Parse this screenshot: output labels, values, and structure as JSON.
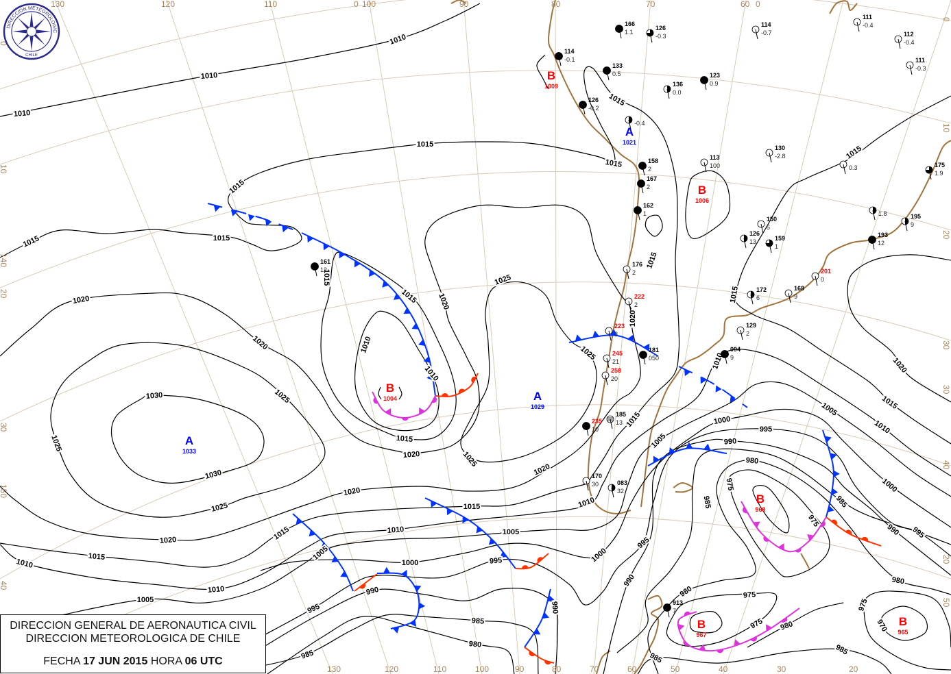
{
  "header": {
    "line1": "DIRECCION GENERAL DE AERONAUTICA CIVIL",
    "line2": "DIRECCION METEOROLOGICA DE CHILE",
    "date_label": "FECHA",
    "date": "17 JUN 2015",
    "hour_label": "HORA",
    "hour": "06 UTC"
  },
  "logo": {
    "text_top": "DIRECCION METEOROLOGICA",
    "text_bottom": "CHILE",
    "icon": "compass-rose-icon"
  },
  "colors": {
    "high": "#0000ff",
    "low": "#ff0000",
    "cold_front": "#0033ff",
    "warm_front": "#ff3300",
    "occluded_front": "#dd33dd",
    "isobar": "#000000",
    "coast": "#a0743c",
    "graticule": "#d8cbb8"
  },
  "pressure_centers": [
    {
      "type": "B",
      "value": "1009"
    },
    {
      "type": "A",
      "value": "1021"
    },
    {
      "type": "B",
      "value": "1006"
    },
    {
      "type": "B",
      "value": "1004"
    },
    {
      "type": "A",
      "value": "1029"
    },
    {
      "type": "A",
      "value": "1033"
    },
    {
      "type": "B",
      "value": "968"
    },
    {
      "type": "B",
      "value": "967"
    },
    {
      "type": "B",
      "value": "965"
    }
  ],
  "isobar_labels": [
    "1010",
    "1010",
    "1010",
    "1015",
    "1015",
    "1015",
    "1015",
    "1015",
    "1015",
    "1015",
    "1015",
    "1020",
    "1025",
    "1015",
    "1020",
    "1020",
    "1020",
    "1010",
    "1010",
    "1025",
    "1030",
    "1025",
    "1025",
    "1015",
    "1020",
    "1025",
    "1030",
    "1020",
    "1020",
    "1025",
    "1015",
    "1010",
    "1005",
    "1015",
    "1010",
    "1000",
    "995",
    "990",
    "980",
    "975",
    "985",
    "1020",
    "1015",
    "1015",
    "1010",
    "1010",
    "1005",
    "1005",
    "1000",
    "995",
    "1000",
    "995",
    "990",
    "995",
    "1010",
    "1005",
    "990",
    "990",
    "985",
    "980",
    "985",
    "980",
    "975",
    "975",
    "980",
    "985",
    "985",
    "975",
    "970",
    "975",
    "985",
    "990",
    "995",
    "980",
    "1000",
    "1005",
    "1010",
    "1015",
    "1020",
    "1015",
    "1015"
  ],
  "graticule_labels": {
    "top": [
      "130",
      "120",
      "110",
      "0",
      "100",
      "90",
      "80",
      "70",
      "60",
      "0"
    ],
    "bottom": [
      "130",
      "120",
      "110",
      "100",
      "90",
      "80",
      "70",
      "60",
      "50",
      "40",
      "30",
      "20"
    ],
    "left": [
      "0",
      "10",
      "140",
      "20",
      "30",
      "150",
      "40"
    ],
    "right": [
      "0",
      "10",
      "20",
      "30",
      "30",
      "40",
      "20",
      "50"
    ]
  },
  "stations": [
    {
      "id": "114",
      "value": "-0.1",
      "cover": "full",
      "red": false
    },
    {
      "id": "166",
      "value": "1.1",
      "cover": "full",
      "red": false
    },
    {
      "id": "126",
      "value": "-0.3",
      "cover": "three-quarter",
      "red": false
    },
    {
      "id": "114",
      "value": "-0.7",
      "cover": "empty",
      "red": false
    },
    {
      "id": "111",
      "value": "-0.4",
      "cover": "empty",
      "red": false
    },
    {
      "id": "112",
      "value": "-0.4",
      "cover": "empty",
      "red": false
    },
    {
      "id": "111",
      "value": "-0.3",
      "cover": "empty",
      "red": false
    },
    {
      "id": "133",
      "value": "0.5",
      "cover": "full",
      "red": false
    },
    {
      "id": "136",
      "value": "0.0",
      "cover": "half",
      "red": false
    },
    {
      "id": "123",
      "value": "0.9",
      "cover": "full",
      "red": false
    },
    {
      "id": "126",
      "value": "-0.2",
      "cover": "full",
      "red": false
    },
    {
      "id": "",
      "value": "-0.4",
      "cover": "half",
      "red": false
    },
    {
      "id": "130",
      "value": "-2.8",
      "cover": "empty",
      "red": false
    },
    {
      "id": "",
      "value": "0.3",
      "cover": "empty",
      "red": false
    },
    {
      "id": "175",
      "value": "1.9",
      "cover": "three-quarter",
      "red": false
    },
    {
      "id": "158",
      "value": "2",
      "cover": "full",
      "red": false
    },
    {
      "id": "167",
      "value": "2",
      "cover": "full",
      "red": false
    },
    {
      "id": "162",
      "value": "1",
      "cover": "full",
      "red": false
    },
    {
      "id": "113",
      "value": "100",
      "cover": "empty",
      "red": false
    },
    {
      "id": "",
      "value": "1.8",
      "cover": "half",
      "red": false
    },
    {
      "id": "150",
      "value": "5",
      "cover": "empty",
      "red": false
    },
    {
      "id": "126",
      "value": "13",
      "cover": "half",
      "red": false
    },
    {
      "id": "159",
      "value": "1",
      "cover": "three-quarter",
      "red": false
    },
    {
      "id": "195",
      "value": "9",
      "cover": "half",
      "red": false
    },
    {
      "id": "193",
      "value": "12",
      "cover": "full",
      "red": false
    },
    {
      "id": "201",
      "value": "0",
      "cover": "empty",
      "red": true
    },
    {
      "id": "172",
      "value": "6",
      "cover": "half",
      "red": false
    },
    {
      "id": "168",
      "value": "9",
      "cover": "empty",
      "red": false
    },
    {
      "id": "129",
      "value": "2",
      "cover": "empty",
      "red": false
    },
    {
      "id": "161",
      "value": "12",
      "cover": "full",
      "red": false
    },
    {
      "id": "176",
      "value": "2",
      "cover": "empty",
      "red": false
    },
    {
      "id": "222",
      "value": "2",
      "cover": "empty",
      "red": true
    },
    {
      "id": "223",
      "value": "8",
      "cover": "empty",
      "red": true
    },
    {
      "id": "245",
      "value": "21",
      "cover": "empty",
      "red": true
    },
    {
      "id": "258",
      "value": "20",
      "cover": "empty",
      "red": true
    },
    {
      "id": "181",
      "value": "050",
      "cover": "full",
      "red": false
    },
    {
      "id": "094",
      "value": "9",
      "cover": "full",
      "red": false
    },
    {
      "id": "185",
      "value": "13",
      "cover": "fog",
      "red": false
    },
    {
      "id": "235",
      "value": "10",
      "cover": "full",
      "red": true
    },
    {
      "id": "170",
      "value": "30",
      "cover": "empty",
      "red": false
    },
    {
      "id": "083",
      "value": "32",
      "cover": "half",
      "red": false
    },
    {
      "id": "913",
      "value": "7",
      "cover": "full",
      "red": false
    }
  ]
}
